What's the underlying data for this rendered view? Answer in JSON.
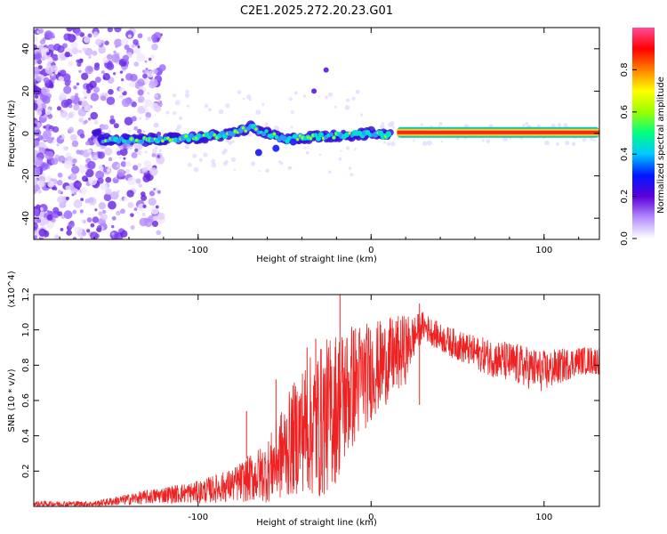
{
  "title": "C2E1.2025.272.20.23.G01",
  "chart_data": [
    {
      "type": "heatmap",
      "name": "spectrogram",
      "xlabel": "Height of straight line (km)",
      "ylabel": "Frequency (Hz)",
      "xlim": [
        -195,
        132
      ],
      "ylim": [
        -50,
        50
      ],
      "xticks": [
        -100,
        0,
        100
      ],
      "yticks": [
        -40,
        -20,
        0,
        20,
        40
      ],
      "colorbar": {
        "label": "Normalized spectral amplitude",
        "range": [
          0,
          1
        ],
        "ticks": [
          0.0,
          0.2,
          0.4,
          0.6,
          0.8
        ],
        "tick_labels": [
          "0.0",
          "0.2",
          "0.4",
          "0.6",
          "0.8"
        ],
        "colors": [
          "#ffffff",
          "#b38cff",
          "#5a00d8",
          "#0018ff",
          "#00c8ff",
          "#00ff80",
          "#9bff00",
          "#ffff00",
          "#ff8000",
          "#ff0000",
          "#ff4d9a"
        ]
      },
      "trace": {
        "description_points": [
          [
            -157,
            -3
          ],
          [
            -130,
            -3
          ],
          [
            -100,
            -2
          ],
          [
            -80,
            0
          ],
          [
            -70,
            3
          ],
          [
            -60,
            0
          ],
          [
            -50,
            -3
          ],
          [
            -40,
            -2
          ],
          [
            -20,
            -1
          ],
          [
            0,
            0
          ],
          [
            10,
            -1
          ],
          [
            20,
            0.5
          ],
          [
            60,
            0.5
          ],
          [
            100,
            0.5
          ],
          [
            130,
            0.5
          ]
        ],
        "secondary_branch": [
          [
            -65,
            -9
          ],
          [
            -55,
            -7
          ],
          [
            -45,
            -4
          ]
        ],
        "blobs": [
          [
            -33,
            20
          ],
          [
            -26,
            30
          ]
        ]
      }
    },
    {
      "type": "line",
      "name": "snr",
      "xlabel": "Height of straight line (km)",
      "ylabel": "SNR (10 * v/v)",
      "scale_note": "(x10^4)",
      "xlim": [
        -195,
        132
      ],
      "ylim": [
        0,
        1.2
      ],
      "xticks": [
        -100,
        0,
        100
      ],
      "yticks": [
        0.2,
        0.4,
        0.6,
        0.8,
        1.0,
        1.2
      ],
      "ytick_labels": [
        "0.2",
        "0.4",
        "0.6",
        "0.8",
        "1.0",
        "1.2"
      ],
      "color": "#ee2222",
      "envelope": {
        "x": [
          -195,
          -160,
          -140,
          -120,
          -100,
          -80,
          -60,
          -50,
          -40,
          -30,
          -20,
          -10,
          0,
          10,
          20,
          25,
          30,
          40,
          60,
          80,
          100,
          120,
          132
        ],
        "mean": [
          0.02,
          0.02,
          0.05,
          0.08,
          0.1,
          0.15,
          0.25,
          0.4,
          0.55,
          0.6,
          0.7,
          0.8,
          0.85,
          0.9,
          0.95,
          1.0,
          1.05,
          0.98,
          0.9,
          0.85,
          0.8,
          0.85,
          0.85
        ],
        "spread": [
          0.02,
          0.02,
          0.04,
          0.06,
          0.08,
          0.12,
          0.22,
          0.35,
          0.45,
          0.55,
          0.55,
          0.45,
          0.35,
          0.3,
          0.25,
          0.15,
          0.1,
          0.1,
          0.12,
          0.15,
          0.15,
          0.1,
          0.1
        ]
      },
      "peaks": [
        [
          -18,
          1.2
        ],
        [
          28,
          1.15
        ],
        [
          -72,
          0.54
        ],
        [
          -55,
          0.72
        ],
        [
          -37,
          0.9
        ],
        [
          -32,
          0.95
        ]
      ]
    }
  ]
}
